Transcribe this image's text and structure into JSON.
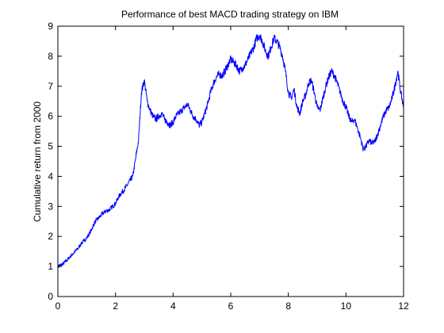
{
  "chart_data": {
    "type": "line",
    "title": "Performance of best MACD trading strategy on IBM",
    "xlabel": "",
    "ylabel": "Cumulative return from 2000",
    "xlim": [
      0,
      12
    ],
    "ylim": [
      0,
      9
    ],
    "xticks": [
      "0",
      "2",
      "4",
      "6",
      "8",
      "10",
      "12"
    ],
    "yticks": [
      "0",
      "1",
      "2",
      "3",
      "4",
      "5",
      "6",
      "7",
      "8",
      "9"
    ],
    "grid": false,
    "legend": "none",
    "series": [
      {
        "color": "#0000ff",
        "x": [
          0.0,
          0.1,
          0.2,
          0.3,
          0.4,
          0.5,
          0.6,
          0.7,
          0.8,
          0.9,
          1.0,
          1.1,
          1.2,
          1.3,
          1.4,
          1.5,
          1.6,
          1.7,
          1.8,
          1.9,
          2.0,
          2.1,
          2.2,
          2.3,
          2.4,
          2.5,
          2.6,
          2.7,
          2.8,
          2.9,
          3.0,
          3.1,
          3.2,
          3.3,
          3.4,
          3.5,
          3.6,
          3.7,
          3.8,
          3.9,
          4.0,
          4.1,
          4.2,
          4.3,
          4.4,
          4.5,
          4.6,
          4.7,
          4.8,
          4.9,
          5.0,
          5.1,
          5.2,
          5.3,
          5.4,
          5.5,
          5.6,
          5.7,
          5.8,
          5.9,
          6.0,
          6.1,
          6.2,
          6.3,
          6.4,
          6.5,
          6.6,
          6.7,
          6.8,
          6.9,
          7.0,
          7.1,
          7.2,
          7.3,
          7.4,
          7.5,
          7.6,
          7.7,
          7.8,
          7.9,
          8.0,
          8.1,
          8.2,
          8.3,
          8.4,
          8.5,
          8.6,
          8.7,
          8.8,
          8.9,
          9.0,
          9.1,
          9.2,
          9.3,
          9.4,
          9.5,
          9.6,
          9.7,
          9.8,
          9.9,
          10.0,
          10.1,
          10.2,
          10.3,
          10.4,
          10.5,
          10.6,
          10.7,
          10.8,
          10.9,
          11.0,
          11.1,
          11.2,
          11.3,
          11.4,
          11.5,
          11.6,
          11.7,
          11.8,
          11.9,
          12.0
        ],
        "y": [
          1.0,
          1.05,
          1.1,
          1.2,
          1.3,
          1.4,
          1.5,
          1.6,
          1.75,
          1.85,
          1.95,
          2.1,
          2.3,
          2.5,
          2.6,
          2.7,
          2.8,
          2.85,
          2.9,
          3.0,
          3.1,
          3.3,
          3.45,
          3.55,
          3.7,
          3.85,
          4.0,
          4.6,
          5.2,
          6.8,
          7.2,
          6.5,
          6.2,
          6.0,
          5.9,
          6.0,
          6.1,
          5.9,
          5.8,
          5.7,
          5.8,
          6.0,
          6.1,
          6.2,
          6.3,
          6.4,
          6.2,
          6.0,
          5.9,
          5.7,
          5.8,
          6.1,
          6.4,
          6.8,
          7.1,
          7.3,
          7.4,
          7.35,
          7.5,
          7.7,
          7.9,
          7.8,
          7.7,
          7.5,
          7.6,
          7.7,
          7.9,
          8.1,
          8.3,
          8.6,
          8.7,
          8.5,
          8.2,
          8.0,
          8.3,
          8.6,
          8.5,
          8.3,
          8.0,
          7.5,
          6.8,
          6.6,
          6.9,
          6.3,
          6.1,
          6.5,
          6.7,
          7.1,
          7.2,
          6.8,
          6.3,
          6.2,
          6.6,
          7.0,
          7.3,
          7.5,
          7.35,
          7.1,
          6.8,
          6.5,
          6.3,
          6.0,
          5.8,
          5.9,
          5.6,
          5.3,
          4.9,
          5.0,
          5.2,
          5.1,
          5.15,
          5.4,
          5.7,
          6.0,
          6.2,
          6.3,
          6.6,
          7.0,
          7.5,
          6.8,
          6.3
        ]
      }
    ]
  }
}
